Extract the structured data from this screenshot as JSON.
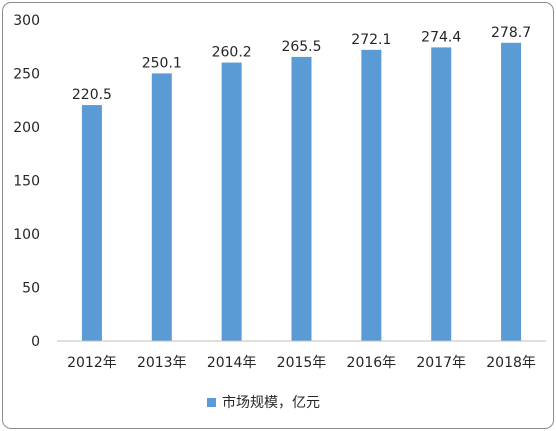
{
  "chart_data": {
    "type": "bar",
    "categories": [
      "2012年",
      "2013年",
      "2014年",
      "2015年",
      "2016年",
      "2017年",
      "2018年"
    ],
    "series": [
      {
        "name": "市场规模，亿元",
        "values": [
          220.5,
          250.1,
          260.2,
          265.5,
          272.1,
          274.4,
          278.7
        ],
        "color": "#5b9bd5"
      }
    ],
    "data_labels": [
      "220.5",
      "250.1",
      "260.2",
      "265.5",
      "272.1",
      "274.4",
      "278.7"
    ],
    "ylim": [
      0,
      300
    ],
    "yticks": [
      0,
      50,
      100,
      150,
      200,
      250,
      300
    ],
    "grid": false,
    "legend": "bottom-center"
  }
}
